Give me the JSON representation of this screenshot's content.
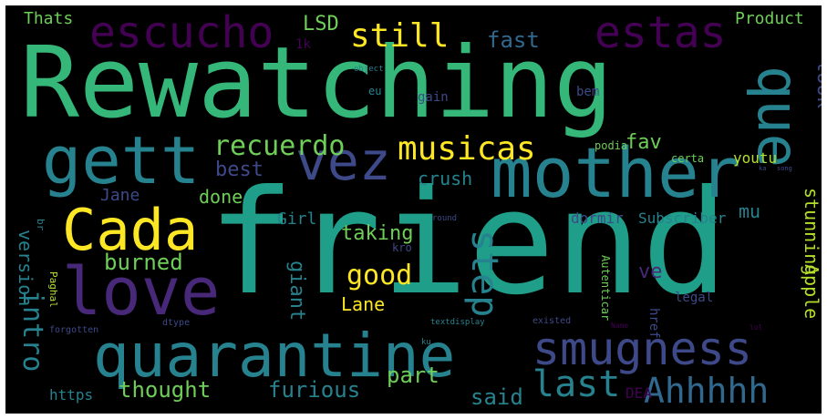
{
  "words": {
    "rewatching": "Rewatching",
    "friend": "friend",
    "mother": "mother",
    "quarantine": "quarantine",
    "smugness": "smugness",
    "love": "love",
    "gett": "gett",
    "vez": "vez",
    "cada": "Cada",
    "que": "que",
    "escucho": "escucho",
    "estas": "estas",
    "musicas": "musicas",
    "recuerdo": "recuerdo",
    "still": "still",
    "last": "last",
    "ahhhhh": "Ahhhhh",
    "good": "good",
    "step": "step",
    "intro": "intro",
    "lsd": "LSD",
    "fast": "fast",
    "look": "look",
    "thats": "Thats",
    "product": "Product",
    "fav": "fav",
    "best": "best",
    "crush": "crush",
    "burned": "burned",
    "thought": "thought",
    "furious": "furious",
    "part": "part",
    "said": "said",
    "version": "version",
    "giant": "giant",
    "lane": "Lane",
    "taking": "taking",
    "done": "done",
    "jane": "Jane",
    "girl": "Girl",
    "apple": "Apple",
    "stunning": "stunning",
    "subscriber": "Subscriber",
    "dormir": "dormir",
    "mu": "mu",
    "ve": "ve",
    "legal": "legal",
    "autenticar": "Autenticar",
    "href": "href",
    "https": "https",
    "dea": "DEA",
    "youtu": "youtu",
    "certa": "certa",
    "podia": "podia",
    "bem": "bem",
    "gain": "gain",
    "eu": "eu",
    "one_k": "1k",
    "object": "object",
    "paghal": "Paghal",
    "br": "br",
    "kro": "kro",
    "round": "round",
    "forgotten": "forgotten",
    "dtype": "dtype",
    "textdisplay": "textdisplay",
    "existed": "existed",
    "ku": "ku",
    "name": "Name",
    "lol": "lol",
    "ka": "ka",
    "song": "song"
  }
}
